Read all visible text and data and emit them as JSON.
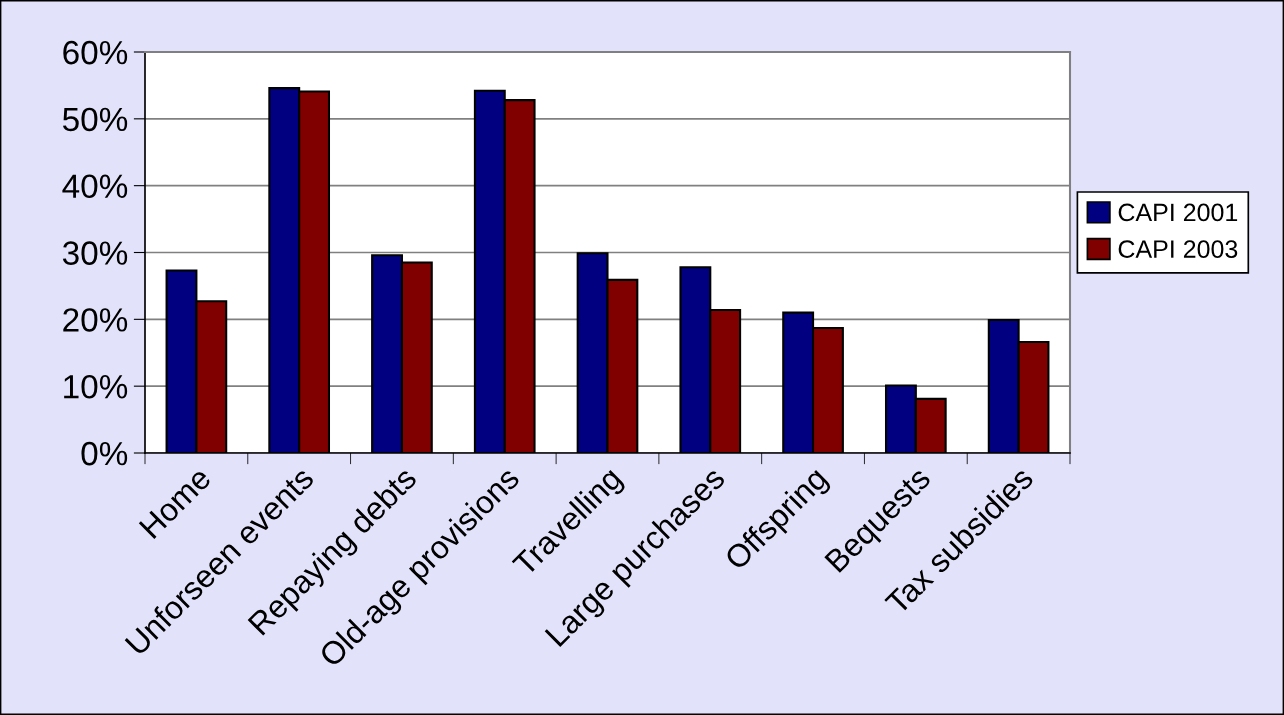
{
  "chart_data": {
    "type": "bar",
    "categories": [
      "Home",
      "Unforseen events",
      "Repaying debts",
      "Old-age provisions",
      "Travelling",
      "Large purchases",
      "Offspring",
      "Bequests",
      "Tax subsidies"
    ],
    "series": [
      {
        "name": "CAPI 2001",
        "color": "#000080",
        "values": [
          27.3,
          54.6,
          29.6,
          54.2,
          29.9,
          27.8,
          21.0,
          10.1,
          19.9
        ]
      },
      {
        "name": "CAPI 2003",
        "color": "#800000",
        "values": [
          22.7,
          54.1,
          28.5,
          52.8,
          25.9,
          21.4,
          18.7,
          8.1,
          16.6
        ]
      }
    ],
    "ylim": [
      0,
      60
    ],
    "yticks": [
      {
        "value": 0,
        "label": "0%"
      },
      {
        "value": 10,
        "label": "10%"
      },
      {
        "value": 20,
        "label": "20%"
      },
      {
        "value": 30,
        "label": "30%"
      },
      {
        "value": 40,
        "label": "40%"
      },
      {
        "value": 50,
        "label": "50%"
      },
      {
        "value": 60,
        "label": "60%"
      }
    ],
    "grid": "y",
    "legend": "right"
  }
}
